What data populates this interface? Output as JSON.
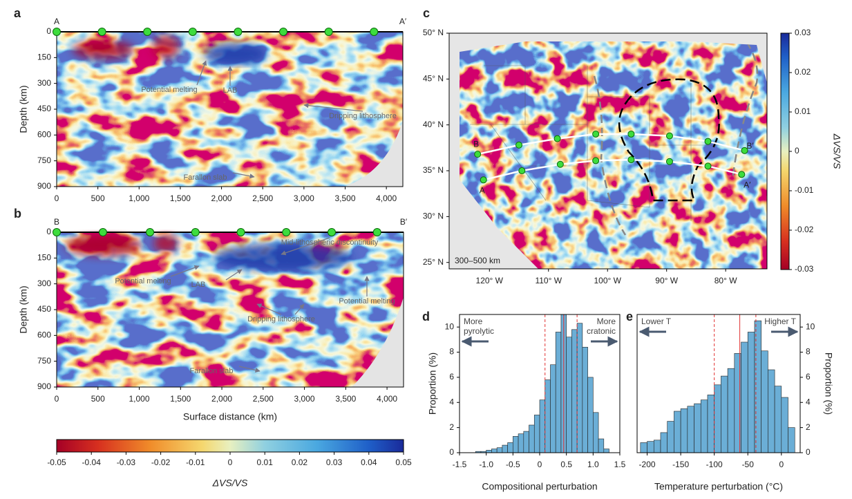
{
  "chart_data": [
    {
      "type": "section",
      "panel": "a",
      "start": "A",
      "end": "A′",
      "ylabel": "Depth (km)",
      "xlim": [
        0,
        4200
      ],
      "ylim": [
        0,
        900
      ],
      "xticks": [
        0,
        500,
        {
          "value": 1000,
          "label": "1,000"
        },
        {
          "value": 1500,
          "label": "1,500"
        },
        {
          "value": 2000,
          "label": "2,000"
        },
        {
          "value": 2500,
          "label": "2,500"
        },
        {
          "value": 3000,
          "label": "3,000"
        },
        {
          "value": 3500,
          "label": "3,500"
        },
        {
          "value": 4000,
          "label": "4,000"
        }
      ],
      "yticks": [
        0,
        150,
        300,
        450,
        600,
        750,
        900
      ],
      "stations": [
        0,
        550,
        1100,
        1650,
        2200,
        2750,
        3300,
        3850
      ],
      "annotations": [
        "Potential melting",
        "LAB",
        "Dripping lithosphere",
        "Farallon slab"
      ]
    },
    {
      "type": "section",
      "panel": "b",
      "start": "B",
      "end": "B′",
      "ylabel": "Depth (km)",
      "xlabel": "Surface distance (km)",
      "xlim": [
        0,
        4200
      ],
      "ylim": [
        0,
        900
      ],
      "xticks": [
        0,
        500,
        {
          "value": 1000,
          "label": "1,000"
        },
        {
          "value": 1500,
          "label": "1,500"
        },
        {
          "value": 2000,
          "label": "2,000"
        },
        {
          "value": 2500,
          "label": "2,500"
        },
        {
          "value": 3000,
          "label": "3,000"
        },
        {
          "value": 3500,
          "label": "3,500"
        },
        {
          "value": 4000,
          "label": "4,000"
        }
      ],
      "yticks": [
        0,
        150,
        300,
        450,
        600,
        750,
        900
      ],
      "stations": [
        0,
        560,
        1130,
        1680,
        2230,
        2780,
        3330,
        3880
      ],
      "annotations": [
        "Mid-lithospheric discontinuity",
        "Potential melting",
        "LAB",
        "Dripping lithosphere",
        "Potential melting",
        "Farallon slab"
      ]
    },
    {
      "type": "colorbar",
      "label": "ΔVS/VS",
      "xlim": [
        -0.05,
        0.05
      ],
      "xticks": [
        -0.05,
        -0.04,
        -0.03,
        -0.02,
        -0.01,
        0,
        0.01,
        0.02,
        0.03,
        0.04,
        0.05
      ]
    },
    {
      "type": "map",
      "panel": "c",
      "depth_label": "300–500 km",
      "xlim": [
        -126,
        -73
      ],
      "ylim": [
        24.3,
        50
      ],
      "xticks": [
        {
          "value": -120,
          "label": "120° W"
        },
        {
          "value": -110,
          "label": "110° W"
        },
        {
          "value": -100,
          "label": "100° W"
        },
        {
          "value": -90,
          "label": "90° W"
        },
        {
          "value": -80,
          "label": "80° W"
        }
      ],
      "yticks": [
        {
          "value": 25,
          "label": "25° N"
        },
        {
          "value": 30,
          "label": "30° N"
        },
        {
          "value": 35,
          "label": "35° N"
        },
        {
          "value": 40,
          "label": "40° N"
        },
        {
          "value": 45,
          "label": "45° N"
        },
        {
          "value": 50,
          "label": "50° N"
        }
      ],
      "colorbar_label": "ΔVS/VS",
      "clim": [
        -0.03,
        0.03
      ],
      "cticks": [
        -0.03,
        -0.02,
        -0.01,
        0,
        0.01,
        0.02,
        0.03
      ],
      "profiles": [
        {
          "start": "A",
          "end": "A′",
          "lon": [
            -121,
            -114.5,
            -108,
            -102,
            -96,
            -89.5,
            -83,
            -77.3
          ],
          "lat": [
            34,
            35,
            35.7,
            36.1,
            36.2,
            36,
            35.5,
            34.6
          ]
        },
        {
          "start": "B",
          "end": "B′",
          "lon": [
            -122,
            -115,
            -108.5,
            -102,
            -96,
            -89.5,
            -83,
            -76.8
          ],
          "lat": [
            36.8,
            37.8,
            38.5,
            39,
            39,
            38.8,
            38.2,
            37.2
          ]
        }
      ]
    },
    {
      "type": "histogram",
      "panel": "d",
      "xlabel": "Compositional perturbation",
      "ylabel": "Proportion (%)",
      "yside": "left",
      "color": "#6baed6",
      "bins": [
        -1.2,
        -1.1,
        -1.0,
        -0.9,
        -0.8,
        -0.7,
        -0.6,
        -0.5,
        -0.4,
        -0.3,
        -0.2,
        -0.1,
        0,
        0.1,
        0.2,
        0.3,
        0.4,
        0.5,
        0.6,
        0.7,
        0.8,
        0.9,
        1.0,
        1.1,
        1.2,
        1.3
      ],
      "values": [
        0.1,
        0.1,
        0.2,
        0.3,
        0.4,
        0.6,
        0.8,
        1.3,
        1.5,
        1.7,
        2.2,
        3.0,
        4.2,
        5.8,
        7.0,
        9.6,
        11.0,
        9.2,
        9.8,
        10.3,
        8.4,
        6.0,
        3.2,
        1.1,
        0.3
      ],
      "xlim": [
        -1.5,
        1.5
      ],
      "ylim": [
        0,
        11
      ],
      "xticks": [
        -1.5,
        {
          "value": -1,
          "label": "-1.0"
        },
        -0.5,
        0,
        0.5,
        {
          "value": 1,
          "label": "1.0"
        },
        1.5
      ],
      "yticks": [
        0,
        2,
        4,
        6,
        8,
        10
      ],
      "line_color": "#e03030",
      "median": 0.45,
      "quantiles": [
        0.1,
        0.7
      ],
      "annotations": [
        {
          "lines": [
            "More",
            "pyrolytic"
          ],
          "dir": "left"
        },
        {
          "lines": [
            "More",
            "cratonic"
          ],
          "dir": "right"
        }
      ]
    },
    {
      "type": "histogram",
      "panel": "e",
      "xlabel": "Temperature perturbation (°C)",
      "ylabel": "Proportion (%)",
      "yside": "right",
      "color": "#6baed6",
      "bins": [
        -210,
        -200,
        -190,
        -180,
        -170,
        -160,
        -150,
        -140,
        -130,
        -120,
        -110,
        -100,
        -90,
        -80,
        -70,
        -60,
        -50,
        -40,
        -30,
        -20,
        -10,
        0,
        10,
        20
      ],
      "values": [
        0.8,
        0.9,
        1.0,
        1.6,
        2.5,
        3.3,
        3.5,
        3.7,
        3.9,
        4.2,
        4.6,
        5.4,
        6.1,
        6.7,
        7.9,
        8.8,
        9.6,
        10.5,
        8.1,
        6.6,
        5.3,
        4.4,
        2.0
      ],
      "xlim": [
        -215,
        28
      ],
      "ylim": [
        0,
        11
      ],
      "xticks": [
        -200,
        -150,
        -100,
        -50,
        0
      ],
      "yticks": [
        0,
        2,
        4,
        6,
        8,
        10
      ],
      "line_color": "#e03030",
      "median": -62,
      "quantiles": [
        -100,
        -38
      ],
      "annotations": [
        {
          "lines": [
            "Lower T"
          ],
          "dir": "left"
        },
        {
          "lines": [
            "Higher T"
          ],
          "dir": "right"
        }
      ]
    }
  ]
}
